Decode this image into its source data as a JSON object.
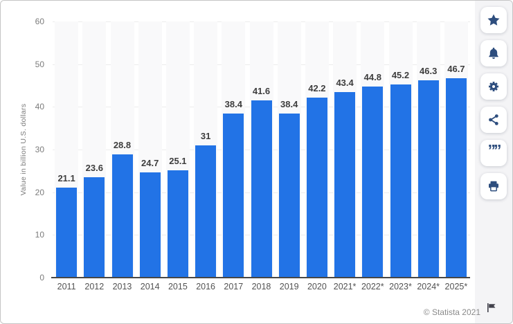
{
  "chart_data": {
    "type": "bar",
    "categories": [
      "2011",
      "2012",
      "2013",
      "2014",
      "2015",
      "2016",
      "2017",
      "2018",
      "2019",
      "2020",
      "2021*",
      "2022*",
      "2023*",
      "2024*",
      "2025*"
    ],
    "values": [
      21.1,
      23.6,
      28.8,
      24.7,
      25.1,
      31,
      38.4,
      41.6,
      38.4,
      42.2,
      43.4,
      44.8,
      45.2,
      46.3,
      46.7
    ],
    "value_labels": [
      "21.1",
      "23.6",
      "28.8",
      "24.7",
      "25.1",
      "31",
      "38.4",
      "41.6",
      "38.4",
      "42.2",
      "43.4",
      "44.8",
      "45.2",
      "46.3",
      "46.7"
    ],
    "title": "",
    "xlabel": "",
    "ylabel": "Value in billion U.S. dollars",
    "ylim": [
      0,
      60
    ],
    "yticks": [
      0,
      10,
      20,
      30,
      40,
      50,
      60
    ],
    "grid": true,
    "legend": false
  },
  "toolbar": {
    "icons": [
      "star-icon",
      "bell-icon",
      "gear-icon",
      "share-icon",
      "quote-icon",
      "printer-icon"
    ]
  },
  "footer": {
    "copyright": "© Statista 2021",
    "flag": "flag-icon"
  },
  "colors": {
    "bar": "#2273e6",
    "icon": "#2e4e7e",
    "axis": "#474747",
    "grid": "#ececec",
    "value_label": "#3d3d3d",
    "tick_label": "#7b7b7b",
    "sidebar_bg": "#f4f4f6",
    "border": "#c5c5c5"
  }
}
